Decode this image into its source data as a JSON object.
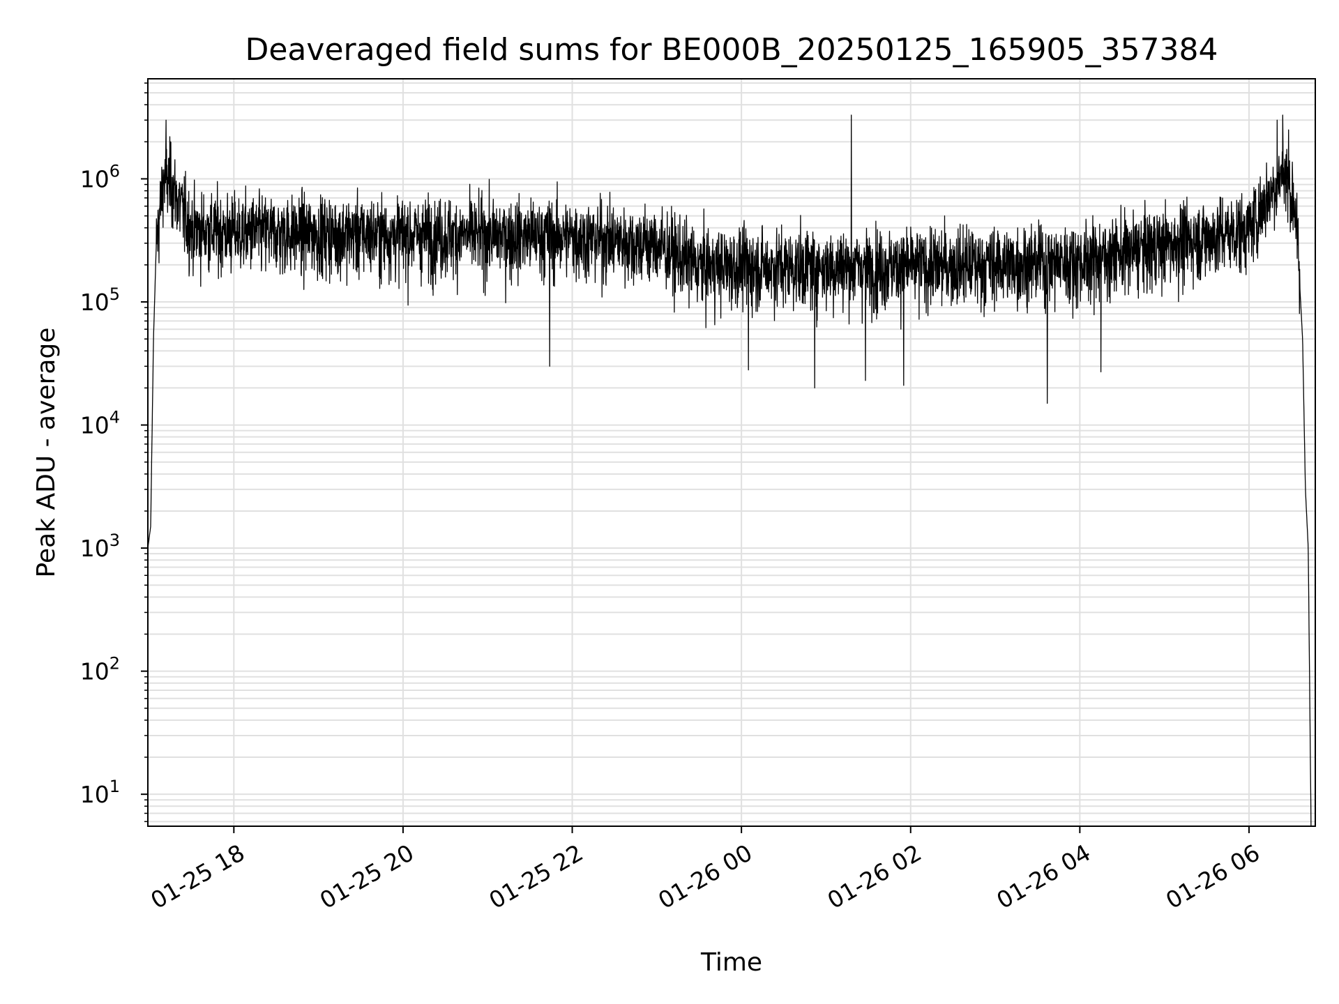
{
  "chart_data": {
    "type": "line",
    "title": "Deaveraged field sums for BE000B_20250125_165905_357384",
    "xlabel": "Time",
    "ylabel": "Peak ADU - average",
    "y_scale": "log",
    "ylim": [
      5.5,
      6500000
    ],
    "xlim": [
      "2025-01-25 16:59",
      "2025-01-26 06:47"
    ],
    "grid": true,
    "line_color": "#000000",
    "grid_color": "#e0e0e0",
    "x_ticks": [
      {
        "value": "2025-01-25 18:00",
        "label": "01-25 18"
      },
      {
        "value": "2025-01-25 20:00",
        "label": "01-25 20"
      },
      {
        "value": "2025-01-25 22:00",
        "label": "01-25 22"
      },
      {
        "value": "2025-01-26 00:00",
        "label": "01-26 00"
      },
      {
        "value": "2025-01-26 02:00",
        "label": "01-26 02"
      },
      {
        "value": "2025-01-26 04:00",
        "label": "01-26 04"
      },
      {
        "value": "2025-01-26 06:00",
        "label": "01-26 06"
      }
    ],
    "y_ticks": [
      {
        "value": 10,
        "base": "10",
        "exp": "1"
      },
      {
        "value": 100,
        "base": "10",
        "exp": "2"
      },
      {
        "value": 1000,
        "base": "10",
        "exp": "3"
      },
      {
        "value": 10000,
        "base": "10",
        "exp": "4"
      },
      {
        "value": 100000,
        "base": "10",
        "exp": "5"
      },
      {
        "value": 1000000,
        "base": "10",
        "exp": "6"
      }
    ],
    "series": [
      {
        "baseline": [
          {
            "x": "2025-01-25 16:59",
            "y": 1000
          },
          {
            "x": "2025-01-25 17:01",
            "y": 1500
          },
          {
            "x": "2025-01-25 17:03",
            "y": 50000
          },
          {
            "x": "2025-01-25 17:05",
            "y": 300000
          },
          {
            "x": "2025-01-25 17:10",
            "y": 1000000
          },
          {
            "x": "2025-01-25 17:15",
            "y": 1000000
          },
          {
            "x": "2025-01-25 17:20",
            "y": 700000
          },
          {
            "x": "2025-01-25 17:30",
            "y": 400000
          },
          {
            "x": "2025-01-25 18:00",
            "y": 380000
          },
          {
            "x": "2025-01-25 20:00",
            "y": 360000
          },
          {
            "x": "2025-01-25 22:00",
            "y": 350000
          },
          {
            "x": "2025-01-25 23:00",
            "y": 300000
          },
          {
            "x": "2025-01-25 23:30",
            "y": 200000
          },
          {
            "x": "2025-01-26 01:00",
            "y": 200000
          },
          {
            "x": "2025-01-26 02:00",
            "y": 200000
          },
          {
            "x": "2025-01-26 04:00",
            "y": 220000
          },
          {
            "x": "2025-01-26 05:00",
            "y": 300000
          },
          {
            "x": "2025-01-26 06:00",
            "y": 400000
          },
          {
            "x": "2025-01-26 06:15",
            "y": 800000
          },
          {
            "x": "2025-01-26 06:25",
            "y": 1200000
          },
          {
            "x": "2025-01-26 06:33",
            "y": 600000
          },
          {
            "x": "2025-01-26 06:38",
            "y": 50000
          },
          {
            "x": "2025-01-26 06:40",
            "y": 3000
          },
          {
            "x": "2025-01-26 06:42",
            "y": 1000
          },
          {
            "x": "2025-01-26 06:44",
            "y": 5.5
          }
        ],
        "spikes": [
          {
            "x": "2025-01-25 17:12",
            "y": 3000000
          },
          {
            "x": "2025-01-25 17:15",
            "y": 2000000
          },
          {
            "x": "2025-01-26 01:18",
            "y": 3300000
          },
          {
            "x": "2025-01-26 06:20",
            "y": 3000000
          },
          {
            "x": "2025-01-26 06:24",
            "y": 3300000
          },
          {
            "x": "2025-01-26 06:28",
            "y": 2500000
          }
        ],
        "dips": [
          {
            "x": "2025-01-25 21:44",
            "y": 30000
          },
          {
            "x": "2025-01-26 00:05",
            "y": 28000
          },
          {
            "x": "2025-01-26 00:52",
            "y": 20000
          },
          {
            "x": "2025-01-26 01:28",
            "y": 23000
          },
          {
            "x": "2025-01-26 01:55",
            "y": 21000
          },
          {
            "x": "2025-01-26 03:37",
            "y": 15000
          },
          {
            "x": "2025-01-26 04:15",
            "y": 27000
          }
        ]
      }
    ]
  }
}
